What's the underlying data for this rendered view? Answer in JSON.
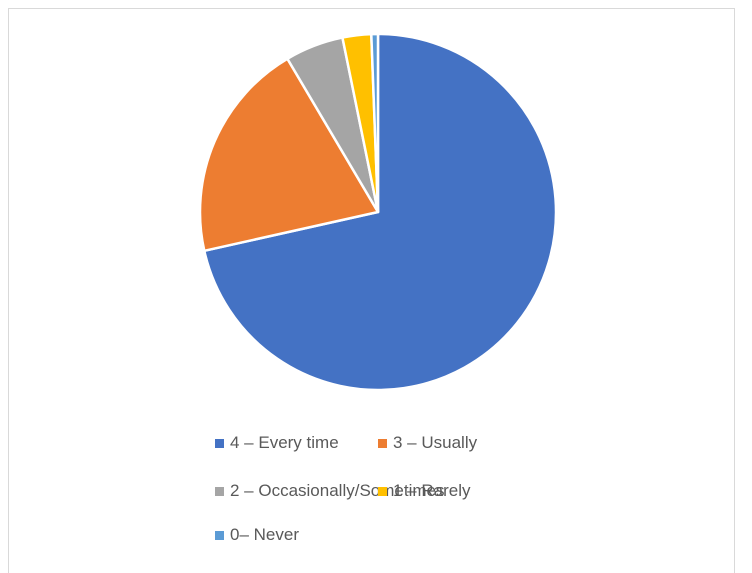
{
  "chart_data": {
    "type": "pie",
    "title": "",
    "legend_position": "bottom",
    "slices": [
      {
        "label": "4 – Every time",
        "value": 71.5,
        "color": "#4472C4"
      },
      {
        "label": "3 – Usually",
        "value": 20.0,
        "color": "#ED7D31"
      },
      {
        "label": "2 – Occasionally/Sometimes",
        "value": 5.3,
        "color": "#A5A5A5"
      },
      {
        "label": "1 – Rarely",
        "value": 2.6,
        "color": "#FFC000"
      },
      {
        "label": "0– Never",
        "value": 0.6,
        "color": "#5B9BD5"
      }
    ]
  }
}
